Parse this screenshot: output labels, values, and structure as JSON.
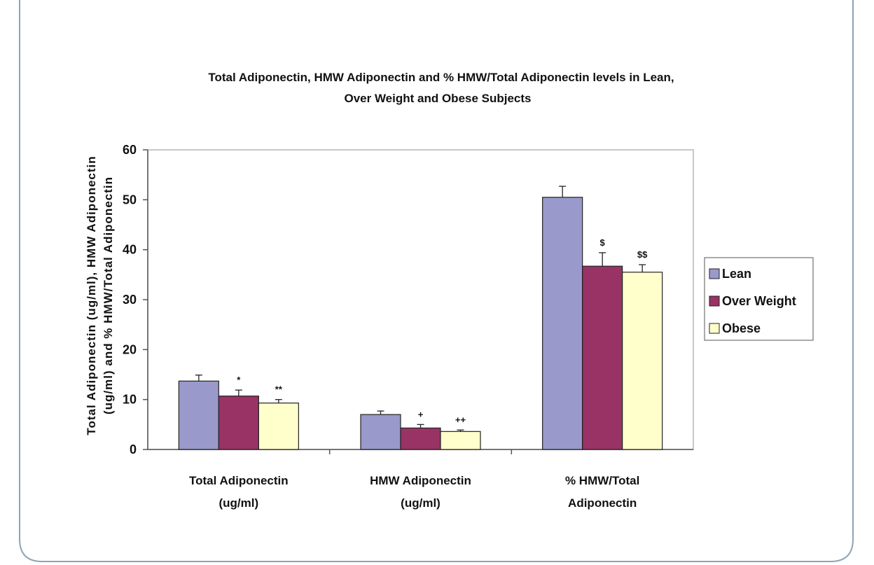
{
  "chart_data": {
    "type": "bar",
    "title_lines": [
      "Total Adiponectin, HMW Adiponectin and %  HMW/Total Adiponectin levels in Lean,",
      "Over Weight and Obese Subjects"
    ],
    "ylabel_lines": [
      "Total Adiponectin (ug/ml), HMW Adiponectin",
      "(ug/ml) and % HMW/Total Adiponectin"
    ],
    "xlabel": "",
    "ylim": [
      0,
      60
    ],
    "yticks": [
      0,
      10,
      20,
      30,
      40,
      50,
      60
    ],
    "grid": false,
    "legend_position": "right",
    "categories": [
      [
        "Total Adiponectin",
        "(ug/ml)"
      ],
      [
        "HMW Adiponectin",
        "(ug/ml)"
      ],
      [
        "% HMW/Total",
        "Adiponectin"
      ]
    ],
    "series": [
      {
        "name": "Lean",
        "color": "#9999cc",
        "values": [
          13.7,
          7.0,
          50.5
        ],
        "errors": [
          1.2,
          0.7,
          2.2
        ],
        "annotations": [
          "",
          "",
          ""
        ]
      },
      {
        "name": "Over Weight",
        "color": "#993366",
        "values": [
          10.7,
          4.3,
          36.7
        ],
        "errors": [
          1.2,
          0.7,
          2.7
        ],
        "annotations": [
          "*",
          "+",
          "$"
        ]
      },
      {
        "name": "Obese",
        "color": "#ffffcc",
        "values": [
          9.3,
          3.6,
          35.5
        ],
        "errors": [
          0.7,
          0.3,
          1.5
        ],
        "annotations": [
          "**",
          "++",
          "$$"
        ]
      }
    ]
  },
  "colors": {
    "frame_border": "#8fa4b4",
    "plot_border": "#b5b5b5",
    "bar_outline": "#222222"
  }
}
